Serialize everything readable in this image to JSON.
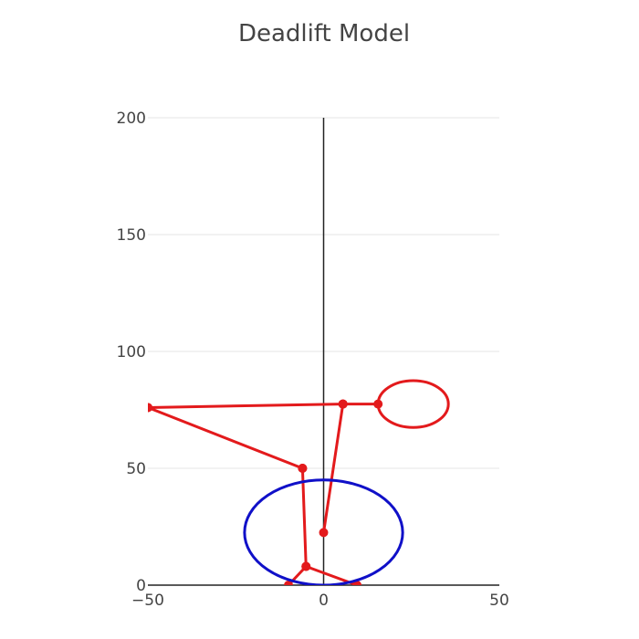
{
  "chart_data": {
    "type": "scatter",
    "title": "Deadlift Model",
    "xlabel": "",
    "ylabel": "",
    "xlim": [
      -50,
      50
    ],
    "ylim": [
      0,
      200
    ],
    "x_ticks": [
      -50,
      0,
      50
    ],
    "x_tick_labels": [
      "−50",
      "0",
      "50"
    ],
    "y_ticks": [
      0,
      50,
      100,
      150,
      200
    ],
    "y_tick_labels": [
      "0",
      "50",
      "100",
      "150",
      "200"
    ],
    "grid": "horizontal",
    "legend": "none",
    "series": [
      {
        "mode": "lines+markers",
        "color": "#e31a1c",
        "points": [
          {
            "x": 9.5,
            "y": 0
          },
          {
            "x": -5,
            "y": 8
          },
          {
            "x": -6,
            "y": 50
          },
          {
            "x": -50,
            "y": 76
          },
          {
            "x": 5.5,
            "y": 77.5
          },
          {
            "x": 15.5,
            "y": 77.5
          },
          {
            "x": 5.5,
            "y": 77.5
          },
          {
            "x": 0,
            "y": 22.5
          },
          {
            "x": 5.5,
            "y": 77.5
          },
          {
            "x": -50,
            "y": 76
          },
          {
            "x": -6,
            "y": 50
          },
          {
            "x": -5,
            "y": 8
          },
          {
            "x": -10,
            "y": 0
          }
        ]
      },
      {
        "mode": "lines",
        "shape": "ellipse",
        "color": "#e31a1c",
        "center": {
          "x": 25.5,
          "y": 77.5
        },
        "radius_x": 10,
        "radius_y": 10
      },
      {
        "mode": "lines",
        "shape": "ellipse",
        "color": "#1010c8",
        "center": {
          "x": 0,
          "y": 22.5
        },
        "radius_x": 22.5,
        "radius_y": 22.5
      }
    ]
  }
}
